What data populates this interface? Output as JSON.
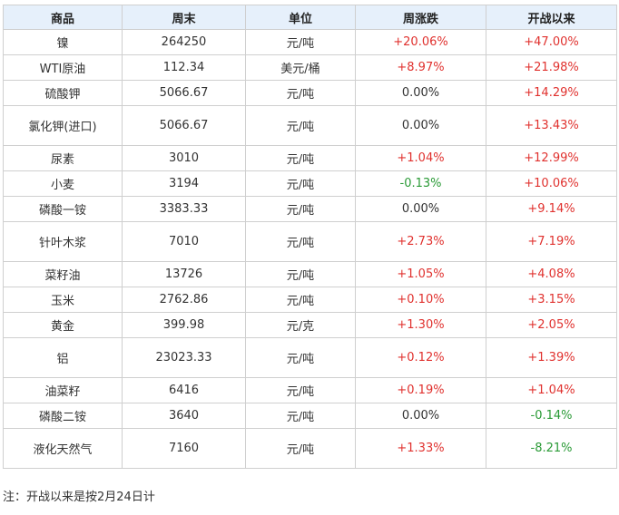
{
  "table": {
    "headers": [
      "商品",
      "周末",
      "单位",
      "周涨跌",
      "开战以来"
    ],
    "rows": [
      {
        "name": "镍",
        "price": "264250",
        "unit": "元/吨",
        "weekly": "+20.06%",
        "since_war": "+47.00%"
      },
      {
        "name": "WTI原油",
        "price": "112.34",
        "unit": "美元/桶",
        "weekly": "+8.97%",
        "since_war": "+21.98%"
      },
      {
        "name": "硫酸钾",
        "price": "5066.67",
        "unit": "元/吨",
        "weekly": "0.00%",
        "since_war": "+14.29%"
      },
      {
        "name": "氯化钾(进口)",
        "price": "5066.67",
        "unit": "元/吨",
        "weekly": "0.00%",
        "since_war": "+13.43%"
      },
      {
        "name": "尿素",
        "price": "3010",
        "unit": "元/吨",
        "weekly": "+1.04%",
        "since_war": "+12.99%"
      },
      {
        "name": "小麦",
        "price": "3194",
        "unit": "元/吨",
        "weekly": "-0.13%",
        "since_war": "+10.06%"
      },
      {
        "name": "磷酸一铵",
        "price": "3383.33",
        "unit": "元/吨",
        "weekly": "0.00%",
        "since_war": "+9.14%"
      },
      {
        "name": "针叶木浆",
        "price": "7010",
        "unit": "元/吨",
        "weekly": "+2.73%",
        "since_war": "+7.19%"
      },
      {
        "name": "菜籽油",
        "price": "13726",
        "unit": "元/吨",
        "weekly": "+1.05%",
        "since_war": "+4.08%"
      },
      {
        "name": "玉米",
        "price": "2762.86",
        "unit": "元/吨",
        "weekly": "+0.10%",
        "since_war": "+3.15%"
      },
      {
        "name": "黄金",
        "price": "399.98",
        "unit": "元/克",
        "weekly": "+1.30%",
        "since_war": "+2.05%"
      },
      {
        "name": "铝",
        "price": "23023.33",
        "unit": "元/吨",
        "weekly": "+0.12%",
        "since_war": "+1.39%"
      },
      {
        "name": "油菜籽",
        "price": "6416",
        "unit": "元/吨",
        "weekly": "+0.19%",
        "since_war": "+1.04%"
      },
      {
        "name": "磷酸二铵",
        "price": "3640",
        "unit": "元/吨",
        "weekly": "0.00%",
        "since_war": "-0.14%"
      },
      {
        "name": "液化天然气",
        "price": "7160",
        "unit": "元/吨",
        "weekly": "+1.33%",
        "since_war": "-8.21%"
      }
    ]
  },
  "colors": {
    "positive": "#e0312e",
    "negative": "#2a9a36",
    "neutral": "#333333",
    "header_bg": "#e6f0fb",
    "border": "#cfcfcf"
  },
  "note": "注：开战以来是按2月24日计"
}
